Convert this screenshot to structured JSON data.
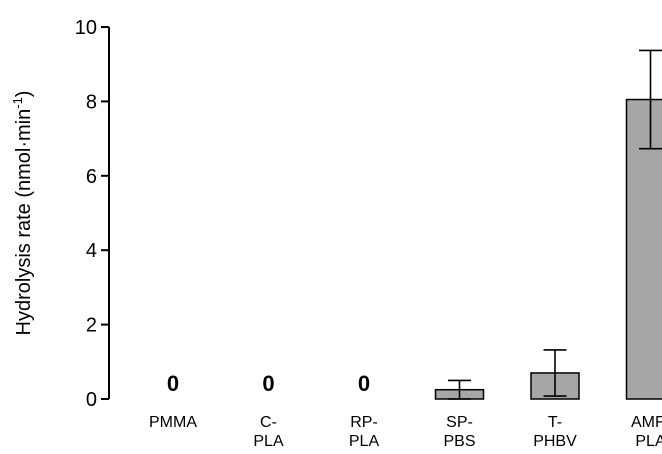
{
  "chart_data": {
    "type": "bar",
    "categories": [
      [
        "PMMA"
      ],
      [
        "C-",
        "PLA"
      ],
      [
        "RP-",
        "PLA"
      ],
      [
        "SP-",
        "PBS"
      ],
      [
        "T-",
        "PHBV"
      ],
      [
        "AMF-",
        "PLA"
      ]
    ],
    "values": [
      0,
      0,
      0,
      0.25,
      0.7,
      8.05
    ],
    "errors": [
      null,
      null,
      null,
      0.25,
      0.62,
      1.32
    ],
    "value_labels": [
      "0",
      "0",
      "0",
      "",
      "",
      ""
    ],
    "ylabel": "Hydrolysis rate (nmol·min",
    "ylabel_sup": "-1",
    "ylabel_close": ")",
    "ylim": [
      0,
      10
    ],
    "yticks": [
      0,
      2,
      4,
      6,
      8,
      10
    ],
    "bar_color": "#a6a6a6",
    "grid": false,
    "legend": "none"
  }
}
